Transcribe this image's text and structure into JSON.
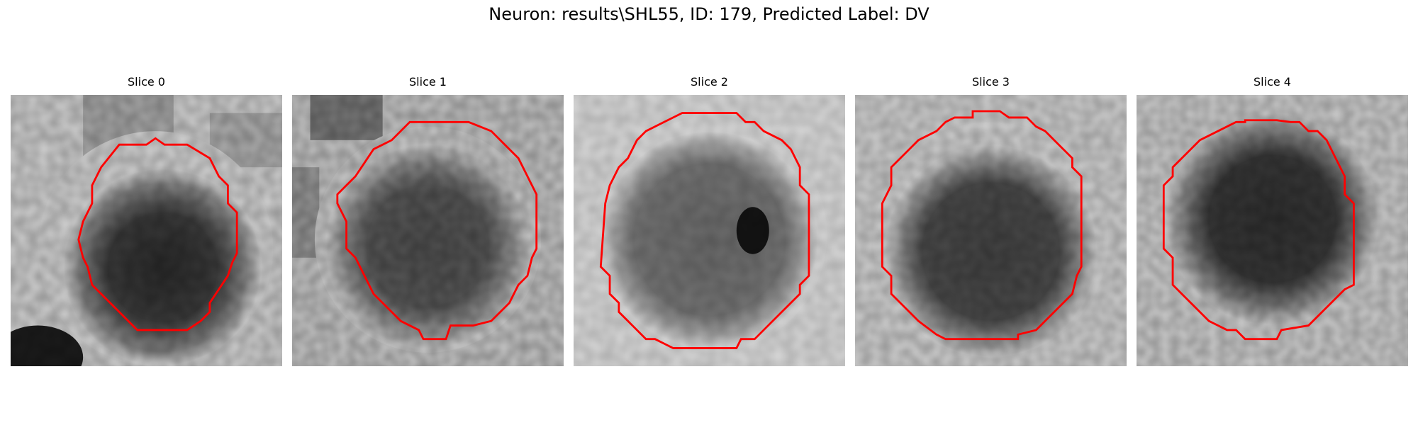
{
  "figure": {
    "title": "Neuron: results\\SHL55, ID: 179, Predicted Label: DV"
  },
  "slices": [
    {
      "title": "Slice 0"
    },
    {
      "title": "Slice 1"
    },
    {
      "title": "Slice 2"
    },
    {
      "title": "Slice 3"
    },
    {
      "title": "Slice 4"
    }
  ],
  "colors": {
    "contour": "#ff0000"
  }
}
